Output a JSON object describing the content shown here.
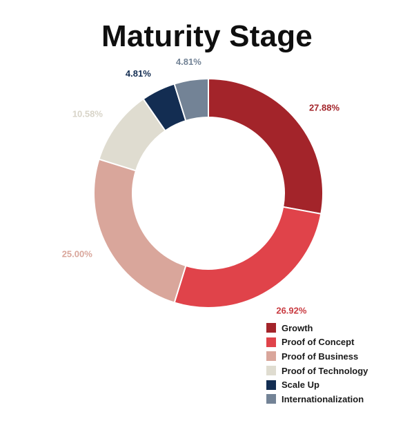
{
  "chart_data": {
    "type": "pie",
    "title": "Maturity Stage",
    "legend_position": "bottom-right",
    "slices": [
      {
        "name": "Growth",
        "value": 27.88,
        "label": "27.88%",
        "color": "#a3242a",
        "label_color": "#a3242a"
      },
      {
        "name": "Proof of Concept",
        "value": 26.92,
        "label": "26.92%",
        "color": "#e0434a",
        "label_color": "#c93a40"
      },
      {
        "name": "Proof of Business",
        "value": 25.0,
        "label": "25.00%",
        "color": "#d9a69b",
        "label_color": "#d9a69b"
      },
      {
        "name": "Proof of Technology",
        "value": 10.58,
        "label": "10.58%",
        "color": "#dfdcd0",
        "label_color": "#d8d4c8"
      },
      {
        "name": "Scale Up",
        "value": 4.81,
        "label": "4.81%",
        "color": "#132d52",
        "label_color": "#132d52"
      },
      {
        "name": "Internationalization",
        "value": 4.81,
        "label": "4.81%",
        "color": "#738396",
        "label_color": "#738396"
      }
    ]
  }
}
